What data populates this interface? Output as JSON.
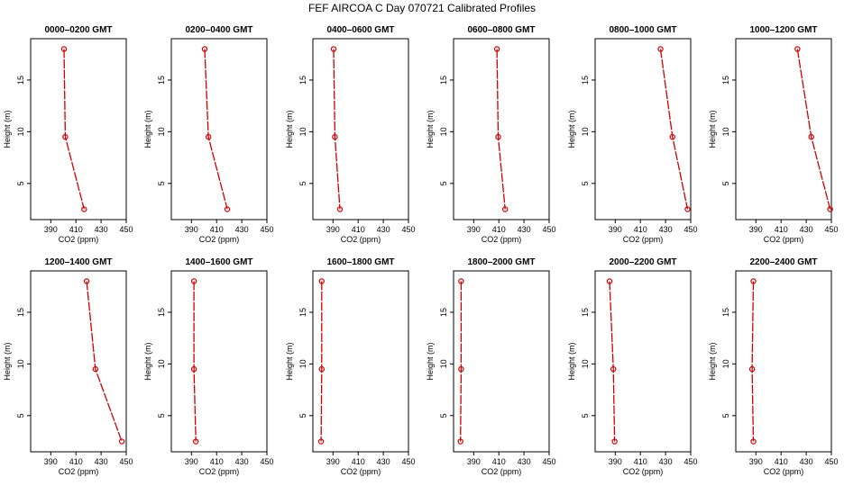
{
  "figure": {
    "title": "FEF AIRCOA C  Day 070721  Calibrated Profiles",
    "line_color": "#cc0000"
  },
  "chart_data": [
    {
      "type": "line",
      "title": "0000–0200 GMT",
      "xlabel": "CO2 (ppm)",
      "ylabel": "Height (m)",
      "xlim": [
        374,
        450
      ],
      "ylim": [
        1.5,
        19
      ],
      "xticks": [
        390,
        410,
        430,
        450
      ],
      "yticks": [
        5,
        10,
        15
      ],
      "series": [
        {
          "x": [
            400.5,
            401.5,
            416.5
          ],
          "y": [
            18,
            9.5,
            2.5
          ]
        }
      ]
    },
    {
      "type": "line",
      "title": "0200–0400 GMT",
      "xlabel": "CO2 (ppm)",
      "ylabel": "Height (m)",
      "xlim": [
        374,
        450
      ],
      "ylim": [
        1.5,
        19
      ],
      "xticks": [
        390,
        410,
        430,
        450
      ],
      "yticks": [
        5,
        10,
        15
      ],
      "series": [
        {
          "x": [
            400.5,
            403.5,
            418.5
          ],
          "y": [
            18,
            9.5,
            2.5
          ]
        }
      ]
    },
    {
      "type": "line",
      "title": "0400–0600 GMT",
      "xlabel": "CO2 (ppm)",
      "ylabel": "Height (m)",
      "xlim": [
        374,
        450
      ],
      "ylim": [
        1.5,
        19
      ],
      "xticks": [
        390,
        410,
        430,
        450
      ],
      "yticks": [
        5,
        10,
        15
      ],
      "series": [
        {
          "x": [
            390.5,
            391.5,
            395.5
          ],
          "y": [
            18,
            9.5,
            2.5
          ]
        }
      ]
    },
    {
      "type": "line",
      "title": "0600–0800 GMT",
      "xlabel": "CO2 (ppm)",
      "ylabel": "Height (m)",
      "xlim": [
        374,
        450
      ],
      "ylim": [
        1.5,
        19
      ],
      "xticks": [
        390,
        410,
        430,
        450
      ],
      "yticks": [
        5,
        10,
        15
      ],
      "series": [
        {
          "x": [
            408.5,
            409.5,
            415
          ],
          "y": [
            18,
            9.5,
            2.5
          ]
        }
      ]
    },
    {
      "type": "line",
      "title": "0800–1000 GMT",
      "xlabel": "CO2 (ppm)",
      "ylabel": "Height (m)",
      "xlim": [
        374,
        450
      ],
      "ylim": [
        1.5,
        19
      ],
      "xticks": [
        390,
        410,
        430,
        450
      ],
      "yticks": [
        5,
        10,
        15
      ],
      "series": [
        {
          "x": [
            426,
            435.5,
            447.5
          ],
          "y": [
            18,
            9.5,
            2.5
          ]
        }
      ]
    },
    {
      "type": "line",
      "title": "1000–1200 GMT",
      "xlabel": "CO2 (ppm)",
      "ylabel": "Height (m)",
      "xlim": [
        374,
        450
      ],
      "ylim": [
        1.5,
        19
      ],
      "xticks": [
        390,
        410,
        430,
        450
      ],
      "yticks": [
        5,
        10,
        15
      ],
      "series": [
        {
          "x": [
            423,
            434,
            449
          ],
          "y": [
            18,
            9.5,
            2.5
          ]
        }
      ]
    },
    {
      "type": "line",
      "title": "1200–1400 GMT",
      "xlabel": "CO2 (ppm)",
      "ylabel": "Height (m)",
      "xlim": [
        374,
        450
      ],
      "ylim": [
        1.5,
        19
      ],
      "xticks": [
        390,
        410,
        430,
        450
      ],
      "yticks": [
        5,
        10,
        15
      ],
      "series": [
        {
          "x": [
            418.5,
            425.5,
            446.5
          ],
          "y": [
            18,
            9.5,
            2.5
          ]
        }
      ]
    },
    {
      "type": "line",
      "title": "1400–1600 GMT",
      "xlabel": "CO2 (ppm)",
      "ylabel": "Height (m)",
      "xlim": [
        374,
        450
      ],
      "ylim": [
        1.5,
        19
      ],
      "xticks": [
        390,
        410,
        430,
        450
      ],
      "yticks": [
        5,
        10,
        15
      ],
      "series": [
        {
          "x": [
            392,
            392,
            393.5
          ],
          "y": [
            18,
            9.5,
            2.5
          ]
        }
      ]
    },
    {
      "type": "line",
      "title": "1600–1800 GMT",
      "xlabel": "CO2 (ppm)",
      "ylabel": "Height (m)",
      "xlim": [
        374,
        450
      ],
      "ylim": [
        1.5,
        19
      ],
      "xticks": [
        390,
        410,
        430,
        450
      ],
      "yticks": [
        5,
        10,
        15
      ],
      "series": [
        {
          "x": [
            381,
            381,
            380.5
          ],
          "y": [
            18,
            9.5,
            2.5
          ]
        }
      ]
    },
    {
      "type": "line",
      "title": "1800–2000 GMT",
      "xlabel": "CO2 (ppm)",
      "ylabel": "Height (m)",
      "xlim": [
        374,
        450
      ],
      "ylim": [
        1.5,
        19
      ],
      "xticks": [
        390,
        410,
        430,
        450
      ],
      "yticks": [
        5,
        10,
        15
      ],
      "series": [
        {
          "x": [
            380,
            380,
            379.5
          ],
          "y": [
            18,
            9.5,
            2.5
          ]
        }
      ]
    },
    {
      "type": "line",
      "title": "2000–2200 GMT",
      "xlabel": "CO2 (ppm)",
      "ylabel": "Height (m)",
      "xlim": [
        374,
        450
      ],
      "ylim": [
        1.5,
        19
      ],
      "xticks": [
        390,
        410,
        430,
        450
      ],
      "yticks": [
        5,
        10,
        15
      ],
      "series": [
        {
          "x": [
            385.5,
            388.5,
            389.5
          ],
          "y": [
            18,
            9.5,
            2.5
          ]
        }
      ]
    },
    {
      "type": "line",
      "title": "2200–2400 GMT",
      "xlabel": "CO2 (ppm)",
      "ylabel": "Height (m)",
      "xlim": [
        374,
        450
      ],
      "ylim": [
        1.5,
        19
      ],
      "xticks": [
        390,
        410,
        430,
        450
      ],
      "yticks": [
        5,
        10,
        15
      ],
      "series": [
        {
          "x": [
            388,
            387,
            388
          ],
          "y": [
            18,
            9.5,
            2.5
          ]
        }
      ]
    }
  ]
}
